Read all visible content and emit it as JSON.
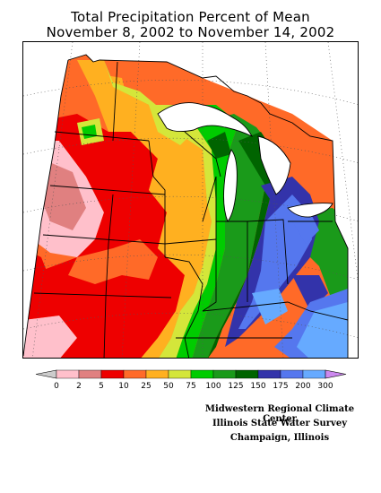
{
  "title_line1": "Total Precipitation Percent of Mean",
  "title_line2": "November 8, 2002 to November 14, 2002",
  "legend": {
    "labels": [
      "0",
      "2",
      "5",
      "10",
      "25",
      "50",
      "75",
      "100",
      "125",
      "150",
      "175",
      "200",
      "300"
    ],
    "colors": [
      "#ffc0cb",
      "#e08080",
      "#ee0000",
      "#ff6a28",
      "#ffb020",
      "#d4e63a",
      "#00cc00",
      "#1a9a1a",
      "#006400",
      "#3333aa",
      "#5577ee",
      "#66aaff",
      "#cc88ee"
    ],
    "low_arrow_color": "#cccccc",
    "high_arrow_color": "#cc88ee"
  },
  "credits": {
    "line1": "Midwestern Regional Climate Center",
    "line2": "Illinois State Water Survey",
    "line3": "Champaign, Illinois"
  }
}
